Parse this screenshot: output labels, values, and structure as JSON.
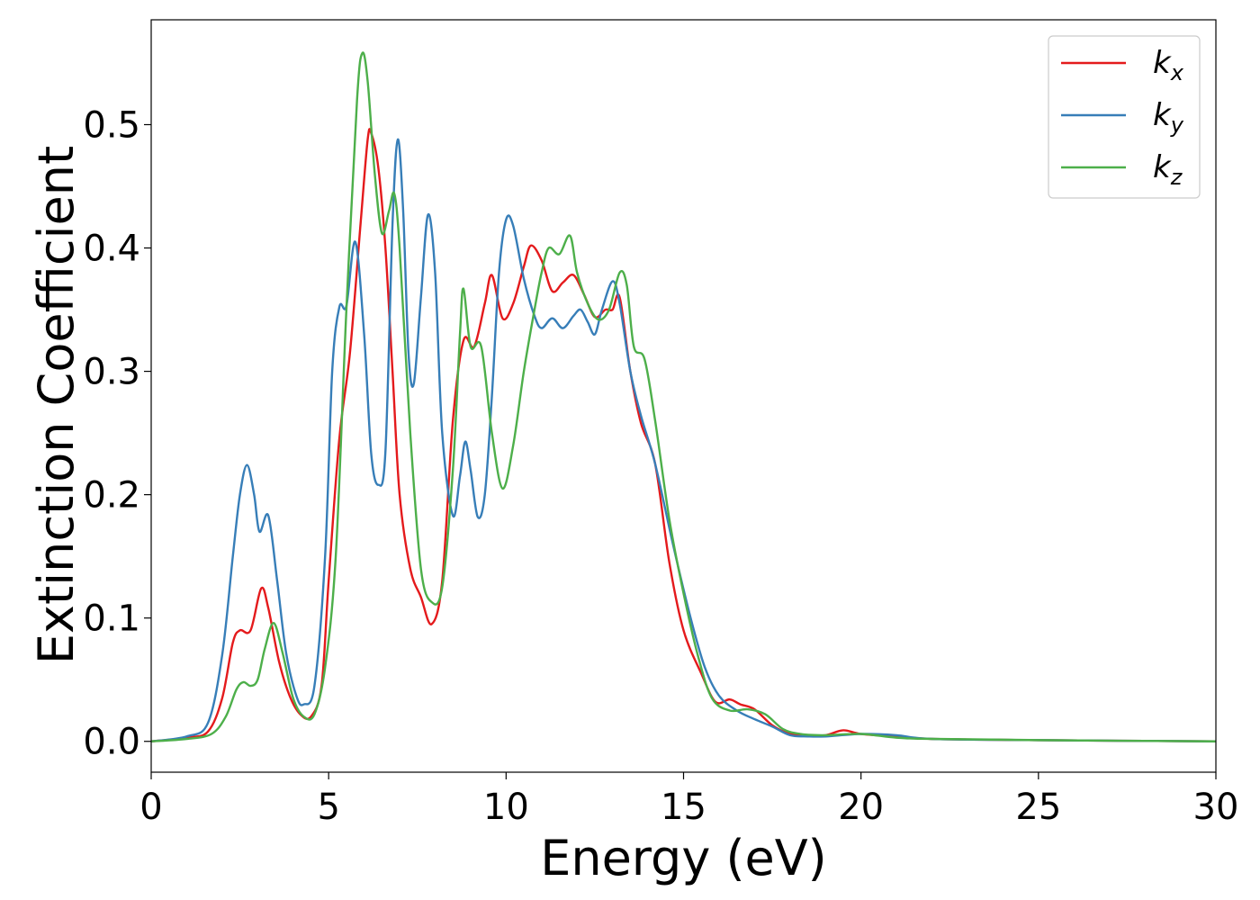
{
  "chart_data": {
    "type": "line",
    "xlabel": "Energy (eV)",
    "ylabel": "Extinction Coefficient",
    "xlim": [
      0,
      30
    ],
    "ylim": [
      -0.025,
      0.585
    ],
    "xticks": [
      0,
      5,
      10,
      15,
      20,
      25,
      30
    ],
    "xtick_labels": [
      "0",
      "5",
      "10",
      "15",
      "20",
      "25",
      "30"
    ],
    "yticks": [
      0.0,
      0.1,
      0.2,
      0.3,
      0.4,
      0.5
    ],
    "ytick_labels": [
      "0.0",
      "0.1",
      "0.2",
      "0.3",
      "0.4",
      "0.5"
    ],
    "grid": false,
    "legend_position": "top-right",
    "series": [
      {
        "name": "k",
        "subscript": "x",
        "color": "#e41a1c",
        "points": [
          [
            0,
            0.0
          ],
          [
            1.0,
            0.003
          ],
          [
            1.6,
            0.008
          ],
          [
            2.0,
            0.035
          ],
          [
            2.3,
            0.08
          ],
          [
            2.5,
            0.09
          ],
          [
            2.8,
            0.09
          ],
          [
            3.1,
            0.124
          ],
          [
            3.3,
            0.108
          ],
          [
            3.6,
            0.065
          ],
          [
            3.9,
            0.037
          ],
          [
            4.2,
            0.022
          ],
          [
            4.5,
            0.02
          ],
          [
            4.8,
            0.045
          ],
          [
            5.0,
            0.13
          ],
          [
            5.3,
            0.245
          ],
          [
            5.6,
            0.315
          ],
          [
            5.9,
            0.42
          ],
          [
            6.1,
            0.488
          ],
          [
            6.2,
            0.493
          ],
          [
            6.4,
            0.465
          ],
          [
            6.6,
            0.4
          ],
          [
            6.8,
            0.3
          ],
          [
            7.0,
            0.2
          ],
          [
            7.3,
            0.14
          ],
          [
            7.6,
            0.117
          ],
          [
            7.9,
            0.095
          ],
          [
            8.2,
            0.13
          ],
          [
            8.5,
            0.26
          ],
          [
            8.8,
            0.325
          ],
          [
            9.1,
            0.32
          ],
          [
            9.4,
            0.355
          ],
          [
            9.6,
            0.378
          ],
          [
            9.9,
            0.343
          ],
          [
            10.2,
            0.355
          ],
          [
            10.5,
            0.385
          ],
          [
            10.7,
            0.402
          ],
          [
            11.0,
            0.39
          ],
          [
            11.3,
            0.365
          ],
          [
            11.6,
            0.372
          ],
          [
            11.9,
            0.378
          ],
          [
            12.2,
            0.362
          ],
          [
            12.5,
            0.344
          ],
          [
            12.8,
            0.35
          ],
          [
            13.0,
            0.35
          ],
          [
            13.2,
            0.36
          ],
          [
            13.5,
            0.3
          ],
          [
            13.8,
            0.258
          ],
          [
            14.2,
            0.225
          ],
          [
            14.6,
            0.145
          ],
          [
            15.0,
            0.09
          ],
          [
            15.5,
            0.055
          ],
          [
            15.9,
            0.032
          ],
          [
            16.3,
            0.034
          ],
          [
            16.6,
            0.03
          ],
          [
            17.0,
            0.026
          ],
          [
            17.5,
            0.013
          ],
          [
            18.0,
            0.006
          ],
          [
            18.5,
            0.005
          ],
          [
            19.0,
            0.005
          ],
          [
            19.5,
            0.009
          ],
          [
            20.0,
            0.006
          ],
          [
            21.0,
            0.004
          ],
          [
            22.0,
            0.002
          ],
          [
            25.0,
            0.001
          ],
          [
            30.0,
            0.0
          ]
        ]
      },
      {
        "name": "k",
        "subscript": "y",
        "color": "#377eb8",
        "points": [
          [
            0,
            0.0
          ],
          [
            1.0,
            0.004
          ],
          [
            1.6,
            0.015
          ],
          [
            2.0,
            0.07
          ],
          [
            2.3,
            0.15
          ],
          [
            2.5,
            0.2
          ],
          [
            2.7,
            0.224
          ],
          [
            2.9,
            0.2
          ],
          [
            3.05,
            0.17
          ],
          [
            3.3,
            0.183
          ],
          [
            3.55,
            0.13
          ],
          [
            3.8,
            0.072
          ],
          [
            4.1,
            0.036
          ],
          [
            4.3,
            0.03
          ],
          [
            4.6,
            0.045
          ],
          [
            4.9,
            0.15
          ],
          [
            5.1,
            0.3
          ],
          [
            5.3,
            0.352
          ],
          [
            5.5,
            0.353
          ],
          [
            5.75,
            0.405
          ],
          [
            6.0,
            0.33
          ],
          [
            6.2,
            0.233
          ],
          [
            6.4,
            0.208
          ],
          [
            6.6,
            0.235
          ],
          [
            6.8,
            0.42
          ],
          [
            6.95,
            0.488
          ],
          [
            7.1,
            0.43
          ],
          [
            7.25,
            0.315
          ],
          [
            7.4,
            0.29
          ],
          [
            7.6,
            0.36
          ],
          [
            7.8,
            0.427
          ],
          [
            8.0,
            0.38
          ],
          [
            8.2,
            0.25
          ],
          [
            8.5,
            0.183
          ],
          [
            8.7,
            0.215
          ],
          [
            8.85,
            0.243
          ],
          [
            9.0,
            0.22
          ],
          [
            9.2,
            0.182
          ],
          [
            9.4,
            0.2
          ],
          [
            9.6,
            0.28
          ],
          [
            9.8,
            0.38
          ],
          [
            10.0,
            0.423
          ],
          [
            10.2,
            0.418
          ],
          [
            10.5,
            0.375
          ],
          [
            10.8,
            0.345
          ],
          [
            11.0,
            0.335
          ],
          [
            11.3,
            0.343
          ],
          [
            11.6,
            0.335
          ],
          [
            11.9,
            0.345
          ],
          [
            12.1,
            0.35
          ],
          [
            12.3,
            0.34
          ],
          [
            12.5,
            0.33
          ],
          [
            12.7,
            0.35
          ],
          [
            13.0,
            0.373
          ],
          [
            13.2,
            0.355
          ],
          [
            13.5,
            0.3
          ],
          [
            13.8,
            0.264
          ],
          [
            14.2,
            0.225
          ],
          [
            14.7,
            0.16
          ],
          [
            15.2,
            0.1
          ],
          [
            15.6,
            0.06
          ],
          [
            16.0,
            0.037
          ],
          [
            16.5,
            0.025
          ],
          [
            17.0,
            0.018
          ],
          [
            17.5,
            0.012
          ],
          [
            18.0,
            0.005
          ],
          [
            18.5,
            0.004
          ],
          [
            19.0,
            0.004
          ],
          [
            20.0,
            0.006
          ],
          [
            21.0,
            0.005
          ],
          [
            22.0,
            0.002
          ],
          [
            25.0,
            0.001
          ],
          [
            30.0,
            0.0
          ]
        ]
      },
      {
        "name": "k",
        "subscript": "z",
        "color": "#4daf4a",
        "points": [
          [
            0,
            0.0
          ],
          [
            1.0,
            0.002
          ],
          [
            1.7,
            0.006
          ],
          [
            2.1,
            0.02
          ],
          [
            2.4,
            0.042
          ],
          [
            2.6,
            0.048
          ],
          [
            2.8,
            0.045
          ],
          [
            3.0,
            0.05
          ],
          [
            3.2,
            0.075
          ],
          [
            3.45,
            0.096
          ],
          [
            3.7,
            0.072
          ],
          [
            4.0,
            0.035
          ],
          [
            4.3,
            0.02
          ],
          [
            4.6,
            0.022
          ],
          [
            4.9,
            0.06
          ],
          [
            5.2,
            0.15
          ],
          [
            5.5,
            0.35
          ],
          [
            5.8,
            0.52
          ],
          [
            5.95,
            0.558
          ],
          [
            6.1,
            0.535
          ],
          [
            6.3,
            0.46
          ],
          [
            6.5,
            0.412
          ],
          [
            6.7,
            0.43
          ],
          [
            6.85,
            0.444
          ],
          [
            7.0,
            0.4
          ],
          [
            7.3,
            0.25
          ],
          [
            7.6,
            0.14
          ],
          [
            7.9,
            0.113
          ],
          [
            8.2,
            0.125
          ],
          [
            8.5,
            0.22
          ],
          [
            8.7,
            0.33
          ],
          [
            8.8,
            0.367
          ],
          [
            9.0,
            0.32
          ],
          [
            9.3,
            0.32
          ],
          [
            9.6,
            0.25
          ],
          [
            9.9,
            0.205
          ],
          [
            10.2,
            0.24
          ],
          [
            10.5,
            0.3
          ],
          [
            10.8,
            0.35
          ],
          [
            11.0,
            0.38
          ],
          [
            11.2,
            0.4
          ],
          [
            11.5,
            0.395
          ],
          [
            11.8,
            0.41
          ],
          [
            12.0,
            0.38
          ],
          [
            12.3,
            0.355
          ],
          [
            12.6,
            0.342
          ],
          [
            12.9,
            0.35
          ],
          [
            13.2,
            0.38
          ],
          [
            13.4,
            0.37
          ],
          [
            13.6,
            0.32
          ],
          [
            13.9,
            0.31
          ],
          [
            14.2,
            0.26
          ],
          [
            14.6,
            0.18
          ],
          [
            15.0,
            0.12
          ],
          [
            15.4,
            0.07
          ],
          [
            15.8,
            0.035
          ],
          [
            16.3,
            0.025
          ],
          [
            16.8,
            0.026
          ],
          [
            17.3,
            0.022
          ],
          [
            17.8,
            0.01
          ],
          [
            18.3,
            0.006
          ],
          [
            19.0,
            0.005
          ],
          [
            20.0,
            0.006
          ],
          [
            21.0,
            0.003
          ],
          [
            22.0,
            0.002
          ],
          [
            25.0,
            0.001
          ],
          [
            30.0,
            0.0
          ]
        ]
      }
    ]
  }
}
